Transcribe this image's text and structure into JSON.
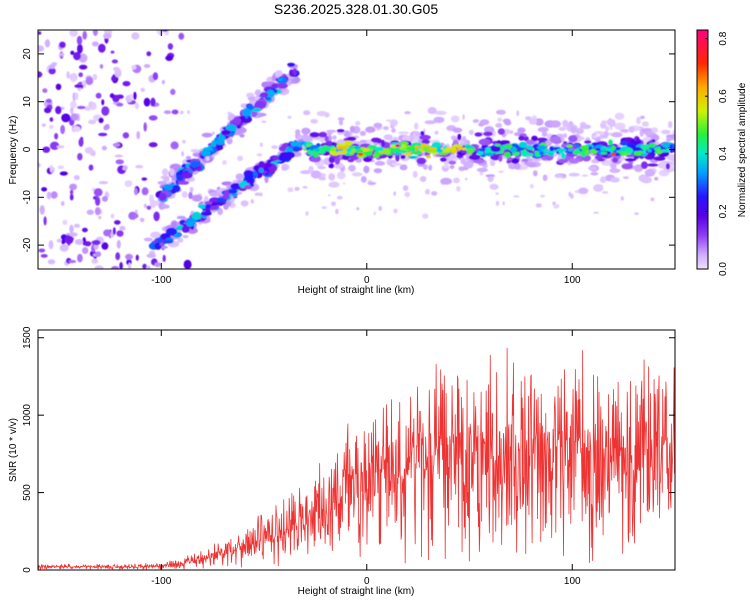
{
  "figure_title": "S236.2025.328.01.30.G05",
  "chart_data": [
    {
      "type": "heatmap",
      "title": "S236.2025.328.01.30.G05",
      "xlabel": "Height of straight line (km)",
      "ylabel": "Frequency (Hz)",
      "xlim": [
        -160,
        150
      ],
      "ylim": [
        -25,
        25
      ],
      "xticks": [
        -100,
        0,
        100
      ],
      "yticks": [
        -20,
        -10,
        0,
        10,
        20
      ],
      "colorbar": {
        "label": "Normalized spectral amplitude",
        "range": [
          0,
          0.83
        ],
        "ticks": [
          0.0,
          0.2,
          0.4,
          0.6,
          0.8
        ]
      },
      "features": [
        {
          "name": "noise-patch",
          "x_range": [
            -160,
            -90
          ],
          "y_range": [
            -25,
            25
          ]
        },
        {
          "name": "upper-branch",
          "from": [
            -100,
            -10
          ],
          "to": [
            -35,
            17
          ]
        },
        {
          "name": "lower-branch",
          "from": [
            -105,
            -21
          ],
          "to": [
            -30,
            2
          ]
        },
        {
          "name": "zero-doppler-band",
          "x_range": [
            -30,
            150
          ],
          "frequency": 0,
          "peak_amplitude": 0.83
        }
      ]
    },
    {
      "type": "line",
      "xlabel": "Height of straight line (km)",
      "ylabel": "SNR (10 * v/v)",
      "xlim": [
        -160,
        150
      ],
      "ylim": [
        0,
        1550
      ],
      "xticks": [
        -100,
        0,
        100
      ],
      "yticks": [
        0,
        500,
        1000,
        1500
      ],
      "color": "#ee3333",
      "series": [
        {
          "name": "SNR",
          "x": [
            -160,
            -120,
            -100,
            -90,
            -80,
            -70,
            -60,
            -50,
            -40,
            -30,
            -20,
            -10,
            0,
            10,
            20,
            30,
            40,
            50,
            60,
            70,
            80,
            90,
            100,
            110,
            120,
            130,
            140,
            150
          ],
          "values": [
            20,
            20,
            25,
            40,
            70,
            110,
            160,
            200,
            260,
            330,
            420,
            500,
            580,
            650,
            700,
            720,
            730,
            730,
            740,
            740,
            740,
            740,
            740,
            740,
            740,
            740,
            740,
            740
          ]
        }
      ]
    }
  ]
}
